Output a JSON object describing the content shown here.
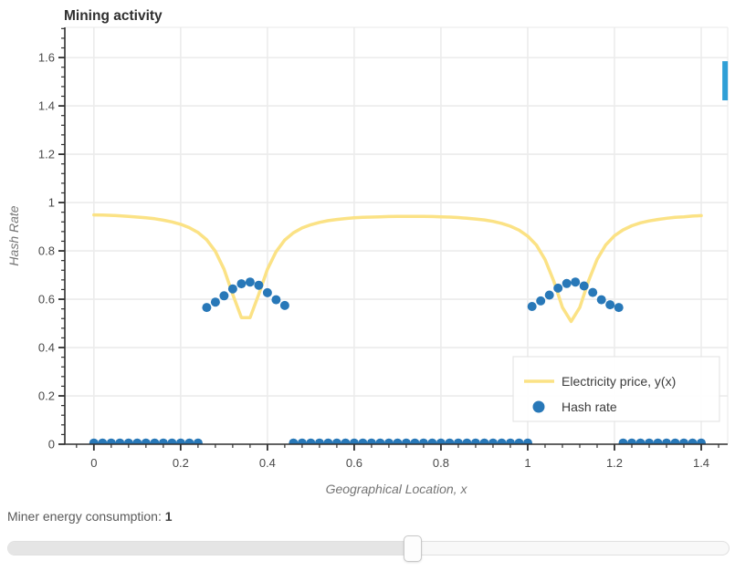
{
  "chart_data": {
    "type": "line+scatter",
    "title": "Mining activity",
    "xlabel": "Geographical Location, x",
    "ylabel": "Hash Rate",
    "xlim": [
      -0.067,
      1.461
    ],
    "ylim": [
      0,
      1.725
    ],
    "grid": true,
    "x_ticks": [
      0,
      0.2,
      0.4,
      0.6,
      0.8,
      1,
      1.2,
      1.4
    ],
    "x_tick_labels": [
      "0",
      "0.2",
      "0.4",
      "0.6",
      "0.8",
      "1",
      "1.2",
      "1.4"
    ],
    "y_ticks": [
      0,
      0.2,
      0.4,
      0.6,
      0.8,
      1,
      1.2,
      1.4,
      1.6
    ],
    "y_tick_labels": [
      "0",
      "0.2",
      "0.4",
      "0.6",
      "0.8",
      "1",
      "1.2",
      "1.4",
      "1.6"
    ],
    "minor_tick_step": 0.04,
    "colors": {
      "line": "#fbe285",
      "scatter": "#2878b8",
      "grid": "#ececec",
      "frame": "#e8e8e8",
      "axis": "#2f2f2f",
      "tick_label": "#4a4a4a",
      "axis_label": "#757575",
      "title": "#2f2f2f",
      "legend_border": "#e5e5e5",
      "legend_text": "#3b3b3b",
      "side_bar": "#2f9fd6"
    },
    "legend": {
      "position": "bottom-right",
      "entries": [
        {
          "label": "Electricity price, y(x)",
          "type": "line"
        },
        {
          "label": "Hash rate",
          "type": "scatter"
        }
      ]
    },
    "line_series": {
      "name": "Electricity price, y(x)",
      "x_start": 0,
      "x_step": 0.02,
      "y": [
        0.949,
        0.948,
        0.947,
        0.945,
        0.943,
        0.94,
        0.937,
        0.933,
        0.927,
        0.92,
        0.91,
        0.896,
        0.876,
        0.846,
        0.798,
        0.724,
        0.62,
        0.524,
        0.524,
        0.62,
        0.724,
        0.797,
        0.845,
        0.875,
        0.895,
        0.908,
        0.918,
        0.925,
        0.93,
        0.934,
        0.937,
        0.939,
        0.94,
        0.941,
        0.942,
        0.943,
        0.943,
        0.943,
        0.943,
        0.942,
        0.941,
        0.94,
        0.938,
        0.935,
        0.932,
        0.928,
        0.922,
        0.914,
        0.902,
        0.886,
        0.861,
        0.824,
        0.764,
        0.675,
        0.566,
        0.508,
        0.566,
        0.675,
        0.765,
        0.825,
        0.863,
        0.887,
        0.904,
        0.916,
        0.924,
        0.93,
        0.935,
        0.939,
        0.941,
        0.944,
        0.946
      ]
    },
    "scatter_series": {
      "name": "Hash rate",
      "marker_radius_px": 5,
      "groups": [
        {
          "y_const": 0.005,
          "x": [
            0,
            0.02,
            0.04,
            0.06,
            0.08,
            0.1,
            0.12,
            0.14,
            0.16,
            0.18,
            0.2,
            0.22,
            0.24
          ]
        },
        {
          "x": [
            0.26,
            0.28,
            0.3,
            0.32,
            0.34,
            0.36,
            0.38,
            0.4,
            0.42,
            0.44
          ],
          "y": [
            0.566,
            0.588,
            0.614,
            0.643,
            0.664,
            0.671,
            0.658,
            0.627,
            0.598,
            0.574
          ]
        },
        {
          "y_const": 0.005,
          "x": [
            0.46,
            0.48,
            0.5,
            0.52,
            0.54,
            0.56,
            0.58,
            0.6,
            0.62,
            0.64,
            0.66,
            0.68,
            0.7,
            0.72,
            0.74,
            0.76,
            0.78,
            0.8,
            0.82,
            0.84,
            0.86,
            0.88,
            0.9,
            0.92,
            0.94,
            0.96,
            0.98,
            1.0
          ]
        },
        {
          "x": [
            1.01,
            1.03,
            1.05,
            1.07,
            1.09,
            1.11,
            1.13,
            1.15,
            1.17,
            1.19,
            1.21
          ],
          "y": [
            0.57,
            0.593,
            0.617,
            0.646,
            0.665,
            0.671,
            0.655,
            0.628,
            0.598,
            0.577,
            0.566
          ]
        },
        {
          "y_const": 0.005,
          "x": [
            1.22,
            1.24,
            1.26,
            1.28,
            1.3,
            1.32,
            1.34,
            1.36,
            1.38,
            1.4
          ]
        }
      ]
    },
    "side_bar": {
      "x": 1.455,
      "y_from": 1.423,
      "y_to": 1.585
    }
  },
  "controls": {
    "label": "Miner energy consumption:",
    "value": "1",
    "position_percent": 56
  }
}
